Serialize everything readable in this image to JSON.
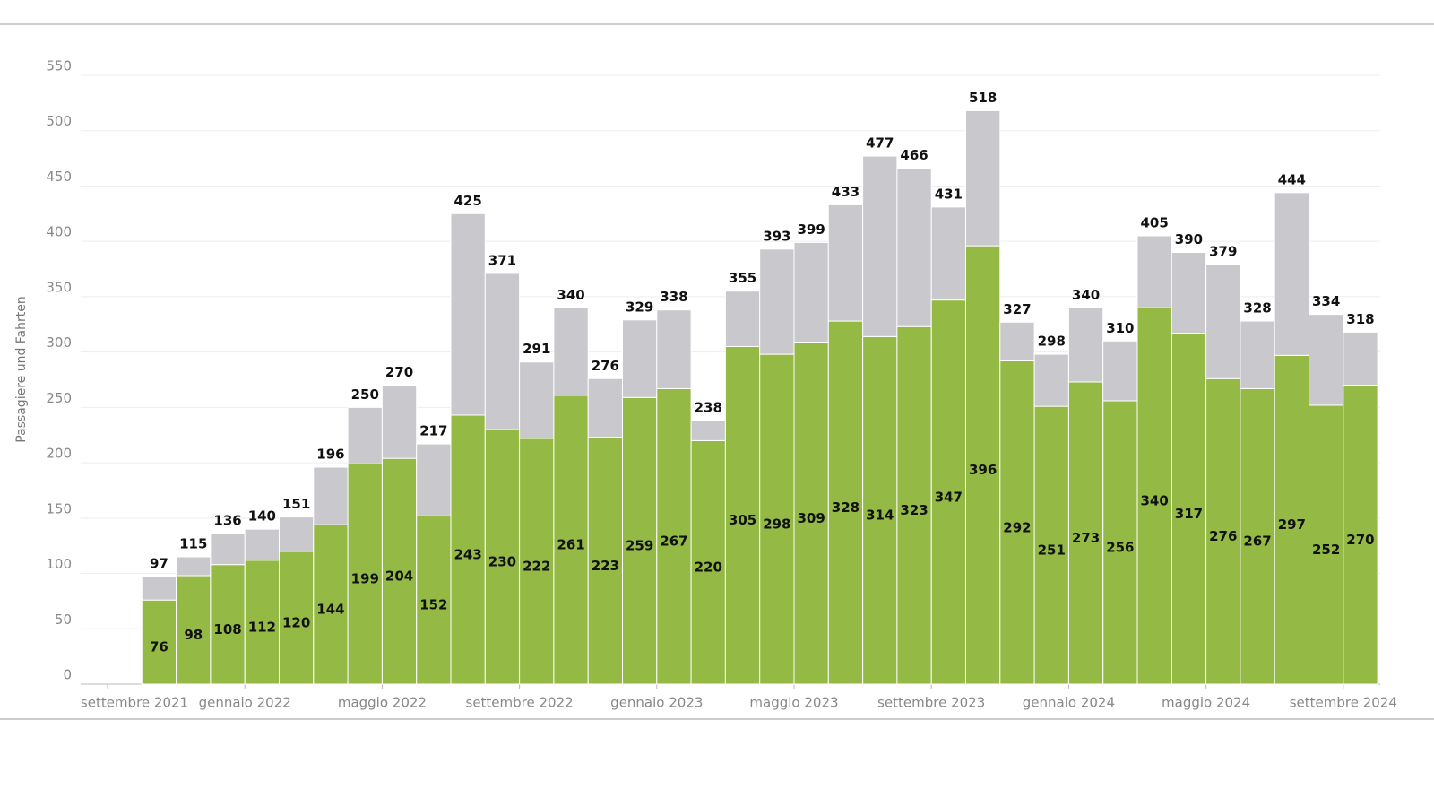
{
  "chart_data": {
    "type": "stacked_bar",
    "y_label": "Passagiere und Fahrten",
    "categories": [
      "settembre 2021",
      null,
      null,
      null,
      "gennaio 2022",
      null,
      null,
      null,
      "maggio 2022",
      null,
      null,
      null,
      "settembre 2022",
      null,
      null,
      null,
      "gennaio 2023",
      null,
      null,
      null,
      "maggio 2023",
      null,
      null,
      null,
      "settembre 2023",
      null,
      null,
      null,
      "gennaio 2024",
      null,
      null,
      null,
      "maggio 2024",
      null,
      null,
      null,
      "settembre 2024"
    ],
    "series": [
      {
        "color": "#94b944",
        "values": [
          null,
          76,
          98,
          108,
          112,
          120,
          144,
          199,
          204,
          152,
          243,
          230,
          222,
          261,
          223,
          259,
          267,
          220,
          305,
          298,
          309,
          328,
          314,
          323,
          347,
          396,
          292,
          251,
          273,
          256,
          340,
          317,
          276,
          267,
          297,
          252,
          270
        ]
      },
      {
        "color": "#c8c8cd",
        "values": [
          null,
          21,
          17,
          28,
          28,
          31,
          52,
          51,
          66,
          65,
          182,
          141,
          69,
          79,
          53,
          70,
          71,
          18,
          50,
          95,
          90,
          105,
          163,
          143,
          84,
          122,
          35,
          47,
          67,
          54,
          65,
          73,
          103,
          61,
          147,
          82,
          48
        ]
      }
    ],
    "totals": [
      null,
      97,
      115,
      136,
      140,
      151,
      196,
      250,
      270,
      217,
      425,
      371,
      291,
      340,
      276,
      329,
      338,
      238,
      355,
      393,
      399,
      433,
      477,
      466,
      431,
      518,
      327,
      298,
      340,
      310,
      405,
      390,
      379,
      328,
      444,
      334,
      318
    ],
    "ylim": [
      0,
      550
    ],
    "yticks": [
      0,
      50,
      100,
      150,
      200,
      250,
      300,
      350,
      400,
      450,
      500,
      550
    ],
    "grid": true
  }
}
